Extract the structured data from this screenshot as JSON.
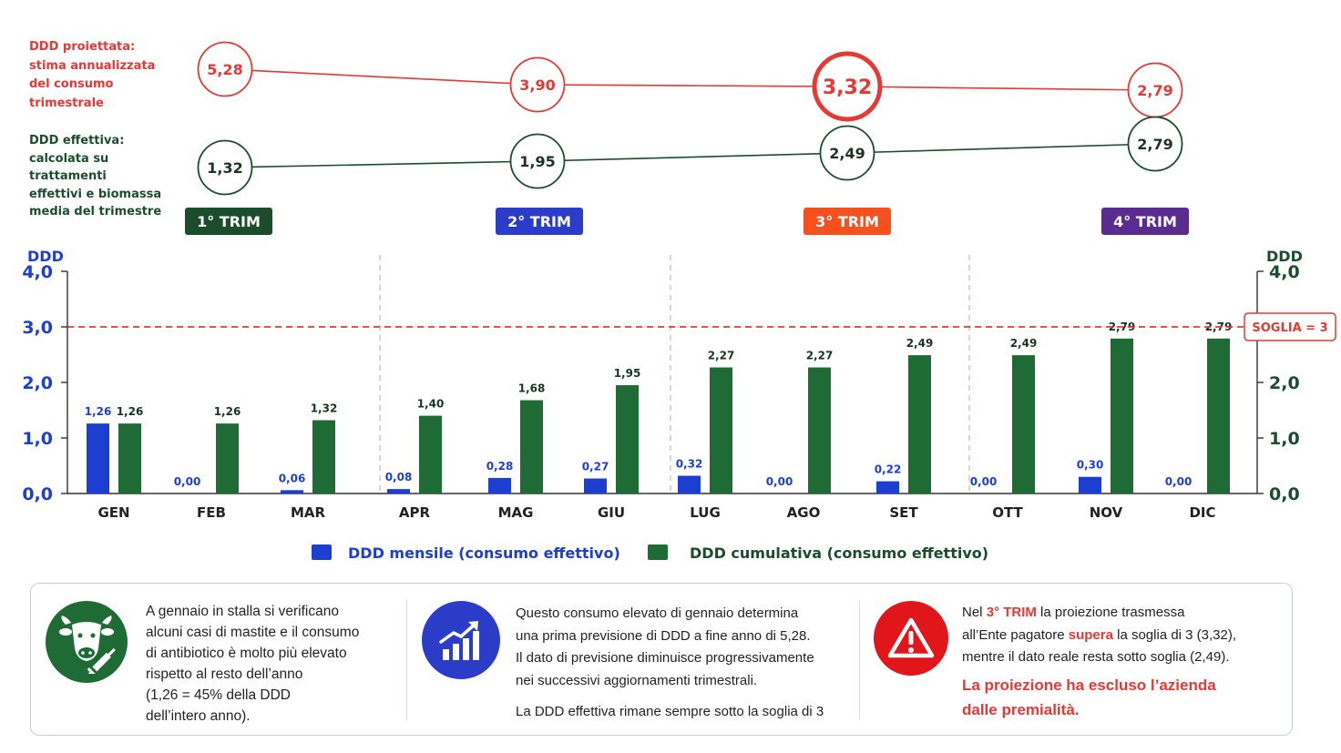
{
  "projection": {
    "label_lines": [
      "DDD proiettata:",
      "stima annualizzata",
      "del consumo",
      "trimestrale"
    ],
    "values": [
      "5,28",
      "3,90",
      "3,32",
      "2,79"
    ],
    "color": "#e53935"
  },
  "effective": {
    "label_lines": [
      "DDD effettiva:",
      "calcolata su trattamenti",
      "effettivi e biomassa",
      "media del trimestre"
    ],
    "values": [
      "1,32",
      "1,95",
      "2,49",
      "2,79"
    ],
    "color": "#1b4d2c"
  },
  "quarters": [
    {
      "label": "1° TRIM",
      "color": "#1b4d2c"
    },
    {
      "label": "2° TRIM",
      "color": "#2b3cc9"
    },
    {
      "label": "3° TRIM",
      "color": "#f4511e"
    },
    {
      "label": "4° TRIM",
      "color": "#5b2c8f"
    }
  ],
  "chart_data": {
    "type": "bar",
    "categories": [
      "GEN",
      "FEB",
      "MAR",
      "APR",
      "MAG",
      "GIU",
      "LUG",
      "AGO",
      "SET",
      "OTT",
      "NOV",
      "DIC"
    ],
    "series": [
      {
        "name": "DDD mensile (consumo effettivo)",
        "color": "#1d3fd1",
        "values": [
          1.26,
          0.0,
          0.06,
          0.08,
          0.28,
          0.27,
          0.32,
          0.0,
          0.22,
          0.0,
          0.3,
          0.0
        ],
        "labels": [
          "1,26",
          "0,00",
          "0,06",
          "0,08",
          "0,28",
          "0,27",
          "0,32",
          "0,00",
          "0,22",
          "0,00",
          "0,30",
          "0,00"
        ]
      },
      {
        "name": "DDD cumulativa (consumo effettivo)",
        "color": "#1e6b35",
        "values": [
          1.26,
          1.26,
          1.32,
          1.4,
          1.68,
          1.95,
          2.27,
          2.27,
          2.49,
          2.49,
          2.79,
          2.79
        ],
        "labels": [
          "1,26",
          "1,26",
          "1,32",
          "1,40",
          "1,68",
          "1,95",
          "2,27",
          "2,27",
          "2,49",
          "2,49",
          "2,79",
          "2,79"
        ]
      }
    ],
    "ylabel_left": "DDD",
    "ylabel_right": "DDD",
    "ylim": [
      0,
      4
    ],
    "yticks": [
      "0,0",
      "1,0",
      "2,0",
      "3,0",
      "4,0"
    ],
    "threshold": {
      "value": 3,
      "label": "SOGLIA = 3",
      "color": "#e53935"
    }
  },
  "panels": {
    "p1": {
      "icon": "cow-syringe-icon",
      "lines": [
        "A gennaio in stalla si verificano",
        "alcuni casi di mastite e il consumo",
        "di antibiotico è molto più elevato",
        "rispetto al resto dell’anno",
        "(1,26 = 45% della DDD",
        "dell’intero anno)."
      ]
    },
    "p2": {
      "icon": "growth-chart-icon",
      "lines": [
        "Questo consumo elevato di gennaio determina",
        "una prima previsione di DDD a fine anno di 5,28.",
        "Il dato di previsione diminuisce progressivamente",
        "nei successivi aggiornamenti trimestrali."
      ],
      "note": "La DDD effettiva rimane sempre sotto la soglia di 3"
    },
    "p3": {
      "icon": "warning-icon",
      "l1_a": "Nel ",
      "l1_b": "3° TRIM",
      "l1_c": " la proiezione trasmessa",
      "l2_a": "all’Ente pagatore ",
      "l2_b": "supera",
      "l2_c": " la soglia di 3 (3,32),",
      "l3": "mentre il dato reale resta sotto soglia (2,49).",
      "alert_lines": [
        "La proiezione ha escluso l’azienda",
        "dalle premialità."
      ]
    }
  }
}
